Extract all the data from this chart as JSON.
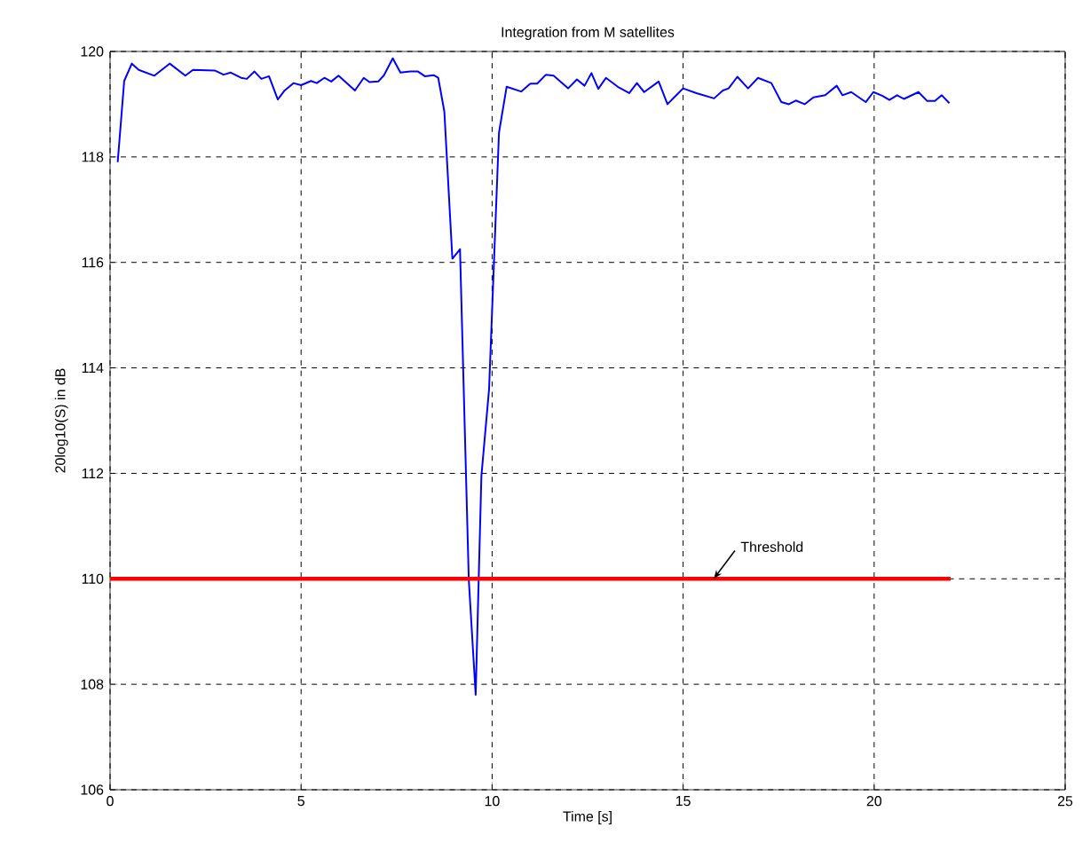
{
  "chart_data": {
    "type": "line",
    "title": "Integration from M satellites",
    "xlabel": "Time [s]",
    "ylabel": "20log10(S) in dB",
    "xlim": [
      0,
      25
    ],
    "ylim": [
      106,
      120
    ],
    "xticks": [
      0,
      5,
      10,
      15,
      20,
      25
    ],
    "yticks": [
      106,
      108,
      110,
      112,
      114,
      116,
      118,
      120
    ],
    "grid": true,
    "marker": "none",
    "line_style": "solid",
    "series": [
      {
        "color": "#0000ff",
        "x": [
          0.2,
          0.37,
          0.57,
          0.75,
          1.16,
          1.56,
          1.97,
          2.17,
          2.74,
          2.97,
          3.16,
          3.43,
          3.58,
          3.78,
          3.96,
          4.16,
          4.39,
          4.57,
          4.8,
          5.0,
          5.26,
          5.41,
          5.61,
          5.79,
          5.98,
          6.41,
          6.64,
          6.79,
          7.02,
          7.17,
          7.4,
          7.6,
          7.86,
          8.06,
          8.24,
          8.47,
          8.59,
          8.75,
          8.96,
          9.16,
          9.39,
          9.57,
          9.72,
          9.92,
          10.18,
          10.38,
          10.76,
          11.0,
          11.18,
          11.41,
          11.61,
          11.99,
          12.22,
          12.42,
          12.6,
          12.78,
          12.98,
          13.29,
          13.59,
          13.79,
          13.98,
          14.36,
          14.59,
          15.0,
          15.35,
          15.81,
          16.04,
          16.19,
          16.42,
          16.7,
          16.96,
          17.31,
          17.57,
          17.77,
          17.95,
          18.18,
          18.41,
          18.72,
          19.02,
          19.17,
          19.4,
          19.78,
          19.98,
          20.21,
          20.4,
          20.6,
          20.78,
          21.16,
          21.39,
          21.59,
          21.77,
          21.97
        ],
        "values": [
          117.9,
          119.44,
          119.77,
          119.65,
          119.54,
          119.77,
          119.54,
          119.65,
          119.64,
          119.56,
          119.6,
          119.5,
          119.48,
          119.62,
          119.48,
          119.53,
          119.09,
          119.26,
          119.4,
          119.36,
          119.44,
          119.4,
          119.5,
          119.43,
          119.54,
          119.26,
          119.5,
          119.42,
          119.43,
          119.55,
          119.87,
          119.6,
          119.62,
          119.62,
          119.53,
          119.55,
          119.5,
          118.86,
          116.07,
          116.25,
          109.98,
          107.8,
          111.95,
          113.59,
          118.46,
          119.33,
          119.24,
          119.39,
          119.39,
          119.56,
          119.54,
          119.3,
          119.47,
          119.35,
          119.59,
          119.29,
          119.5,
          119.33,
          119.21,
          119.4,
          119.23,
          119.43,
          119.0,
          119.3,
          119.21,
          119.11,
          119.26,
          119.3,
          119.52,
          119.3,
          119.5,
          119.4,
          119.04,
          119.0,
          119.07,
          119.0,
          119.13,
          119.17,
          119.35,
          119.17,
          119.23,
          119.04,
          119.23,
          119.16,
          119.08,
          119.17,
          119.1,
          119.23,
          119.06,
          119.06,
          119.17,
          119.02
        ]
      },
      {
        "color": "#ff0000",
        "x": [
          0,
          22
        ],
        "values": [
          110,
          110
        ]
      }
    ],
    "annotations": [
      {
        "text": "Threshold",
        "x": 15.8,
        "y": 110
      }
    ]
  }
}
